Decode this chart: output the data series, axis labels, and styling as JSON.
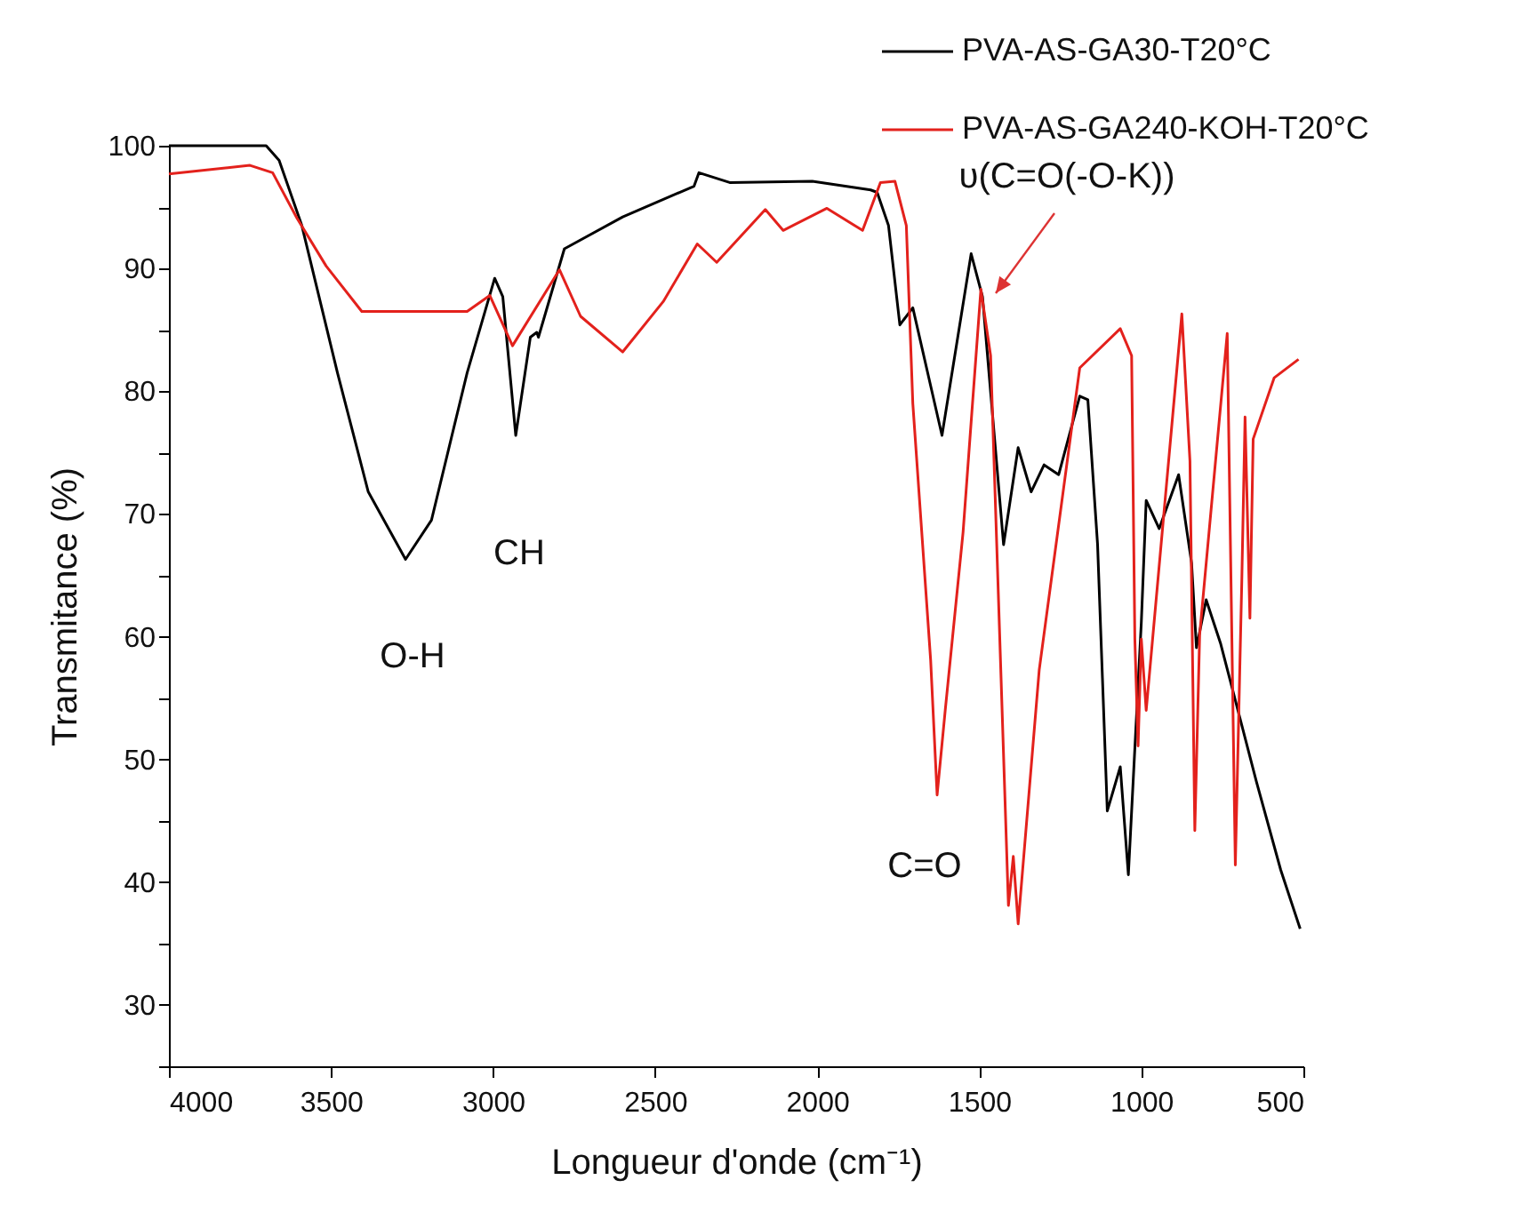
{
  "chart_data": {
    "type": "line",
    "xlabel": "Longueur d'onde (cm⁻¹)",
    "ylabel": "Transmitance (%)",
    "xlim": [
      4000,
      500
    ],
    "xticks": [
      4000,
      3500,
      3000,
      2500,
      2000,
      1500,
      1000,
      500
    ],
    "ylim": [
      25,
      100
    ],
    "yticks": [
      {
        "value": 25,
        "label": null
      },
      30,
      {
        "value": 35,
        "label": null
      },
      40,
      {
        "value": 45,
        "label": null
      },
      50,
      {
        "value": 55,
        "label": null
      },
      60,
      {
        "value": 65,
        "label": null
      },
      70,
      {
        "value": 75,
        "label": null
      },
      80,
      {
        "value": 85,
        "label": null
      },
      90,
      {
        "value": 95,
        "label": null
      },
      100
    ],
    "grid": false,
    "legend": "top right",
    "line_style": "solid",
    "marker": "none",
    "series": [
      {
        "name": "PVA-AS-GA30-T20°C",
        "color": "#000000",
        "x": [
          4000,
          3700,
          3660,
          3590,
          3480,
          3385,
          3270,
          3190,
          3080,
          2995,
          2970,
          2930,
          2885,
          2865,
          2860,
          2780,
          2600,
          2380,
          2365,
          2270,
          2015,
          1835,
          1815,
          1780,
          1745,
          1705,
          1615,
          1525,
          1490,
          1425,
          1380,
          1340,
          1300,
          1255,
          1190,
          1165,
          1135,
          1105,
          1065,
          1040,
          1000,
          985,
          945,
          885,
          845,
          830,
          800,
          755,
          645,
          570,
          510
        ],
        "values": [
          100,
          100,
          98.8,
          93.5,
          81.5,
          71.8,
          66.3,
          69.5,
          81.5,
          89.2,
          87.7,
          76.4,
          84.4,
          84.8,
          84.4,
          91.6,
          94.2,
          96.7,
          97.8,
          97,
          97.1,
          96.4,
          96.2,
          93.5,
          85.4,
          86.8,
          76.4,
          91.2,
          87.7,
          67.5,
          75.4,
          71.8,
          74,
          73.2,
          79.6,
          79.3,
          67.5,
          45.8,
          49.4,
          40.6,
          61.2,
          71.1,
          68.8,
          73.2,
          66,
          59.1,
          63,
          59.4,
          48.2,
          41,
          36.2
        ]
      },
      {
        "name": "PVA-AS-GA240-KOH-T20°C",
        "color": "#e3211c",
        "x": [
          4000,
          3750,
          3680,
          3605,
          3515,
          3405,
          3080,
          3010,
          2940,
          2795,
          2730,
          2600,
          2475,
          2370,
          2310,
          2160,
          2105,
          1970,
          1860,
          1805,
          1760,
          1725,
          1705,
          1650,
          1630,
          1605,
          1550,
          1495,
          1465,
          1410,
          1395,
          1380,
          1315,
          1190,
          1065,
          1030,
          1020,
          1010,
          1000,
          985,
          875,
          850,
          835,
          820,
          735,
          710,
          690,
          680,
          665,
          655,
          590,
          515
        ],
        "values": [
          97.7,
          98.4,
          97.8,
          94.1,
          90.2,
          86.5,
          86.5,
          87.8,
          83.7,
          89.9,
          86.1,
          83.2,
          87.3,
          92,
          90.5,
          94.8,
          93.1,
          94.9,
          93.1,
          97,
          97.1,
          93.5,
          79,
          58.1,
          47.1,
          54,
          68.5,
          88.3,
          82.9,
          38.1,
          42.1,
          36.6,
          57.3,
          81.9,
          85.1,
          82.9,
          59.8,
          51.1,
          59.8,
          54,
          86.3,
          74.3,
          44.2,
          60.2,
          84.7,
          41.4,
          64.6,
          77.9,
          61.5,
          76.1,
          81.1,
          82.6
        ]
      }
    ],
    "annotations": [
      "O-H",
      "CH",
      "C=O",
      "υ(C=O(-O-K))"
    ]
  }
}
